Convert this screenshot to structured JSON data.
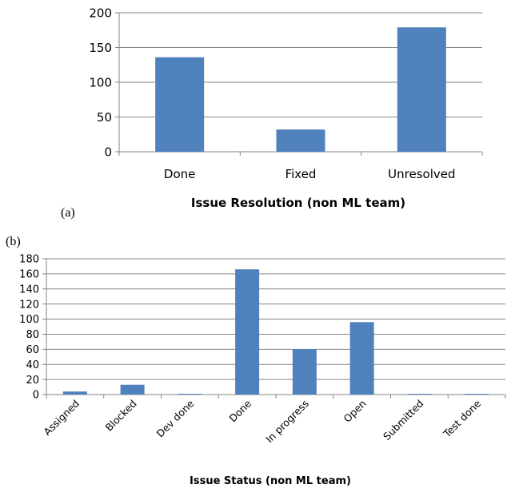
{
  "colors": {
    "bar": "#4f81bd",
    "grid": "#868686",
    "axis": "#868686"
  },
  "chart_data": [
    {
      "type": "bar",
      "panel_label": "(a)",
      "title": "",
      "xlabel": "Issue Resolution (non ML team)",
      "ylabel": "",
      "categories": [
        "Done",
        "Fixed",
        "Unresolved"
      ],
      "values": [
        136,
        32,
        179
      ],
      "ylim": [
        0,
        200
      ],
      "yticks": [
        "0",
        "50",
        "100",
        "150",
        "200"
      ],
      "grid": true
    },
    {
      "type": "bar",
      "panel_label": "(b)",
      "title": "",
      "xlabel": "Issue Status (non ML team)",
      "ylabel": "",
      "categories": [
        "Assigned",
        "Blocked",
        "Dev done",
        "Done",
        "In progress",
        "Open",
        "Submitted",
        "Test done"
      ],
      "values": [
        4,
        13,
        1,
        166,
        60,
        96,
        1,
        1
      ],
      "ylim": [
        0,
        180
      ],
      "yticks": [
        "0",
        "20",
        "40",
        "60",
        "80",
        "100",
        "120",
        "140",
        "160",
        "180"
      ],
      "grid": true
    }
  ]
}
